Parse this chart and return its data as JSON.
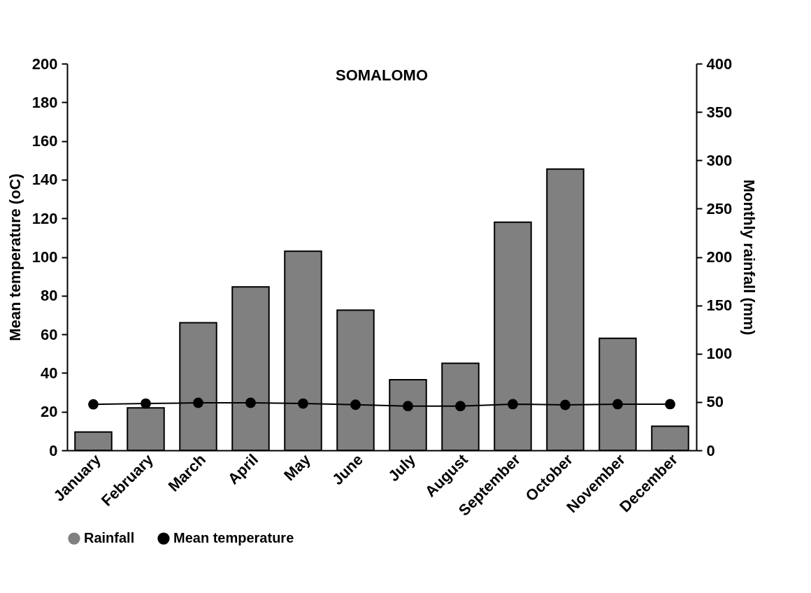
{
  "chart_data": {
    "type": "bar",
    "title": "SOMALOMO",
    "ylabel": "Mean temperature (oC)",
    "y2label": "Monthly rainfall (mm)",
    "categories": [
      "January",
      "February",
      "March",
      "April",
      "May",
      "June",
      "July",
      "August",
      "September",
      "October",
      "November",
      "December"
    ],
    "series": [
      {
        "name": "Rainfall",
        "axis": "y2",
        "color": "#808080",
        "values": [
          19,
          44,
          132,
          169,
          206,
          145,
          73,
          90,
          236,
          291,
          116,
          25
        ]
      },
      {
        "name": "Mean temperature",
        "type": "line",
        "axis": "y",
        "color": "#000000",
        "values": [
          23.8,
          24.2,
          24.6,
          24.6,
          24.2,
          23.6,
          22.9,
          22.9,
          23.9,
          23.5,
          23.9,
          23.9
        ]
      }
    ],
    "ylim": [
      0,
      200
    ],
    "yticks": [
      0,
      20,
      40,
      60,
      80,
      100,
      120,
      140,
      160,
      180,
      200
    ],
    "y2lim": [
      0,
      400
    ],
    "y2ticks": [
      0,
      50,
      100,
      150,
      200,
      250,
      300,
      350,
      400
    ],
    "grid": false,
    "legend": "bottom",
    "marker": "circle",
    "line_style": "solid"
  }
}
